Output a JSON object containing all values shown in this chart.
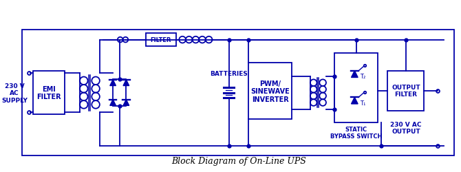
{
  "title": "Block Diagram of On-Line UPS",
  "bg_color": "#ffffff",
  "line_color": "#0000aa",
  "fig_width": 6.7,
  "fig_height": 2.51,
  "dpi": 100,
  "supply_label": "230 V\nAC\nSUPPLY",
  "output_label": "230 V AC\nOUTPUT",
  "batteries_label": "BATTERIES",
  "emi_label": "EMI\nFILTER",
  "filter_label": "FILTER",
  "pwm_label": "PWM/\nSINEWAVE\nINVERTER",
  "sbs_label": "STATIC\nBYPASS SWITCH",
  "of_label": "OUTPUT\nFILTER"
}
